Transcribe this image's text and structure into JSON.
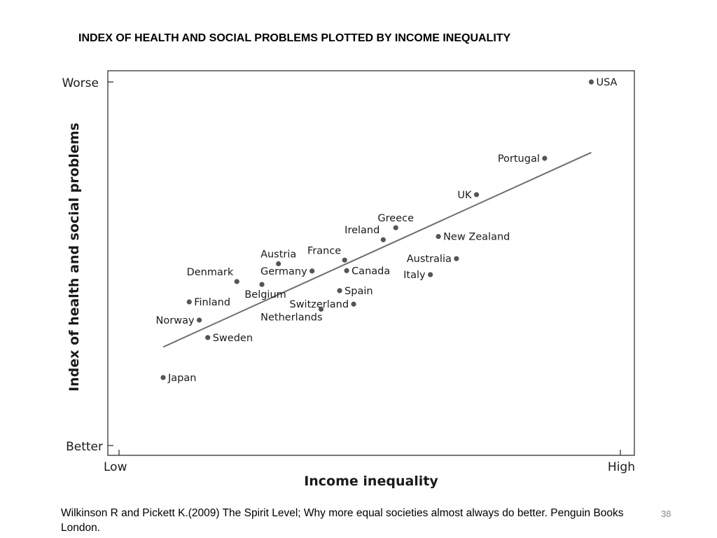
{
  "slide": {
    "title": "INDEX OF HEALTH AND SOCIAL PROBLEMS PLOTTED BY INCOME INEQUALITY",
    "citation": "Wilkinson R and Pickett K.(2009) The Spirit Level; Why more equal societies almost always do better. Penguin Books London.",
    "slide_number": "38"
  },
  "chart_data": {
    "type": "scatter",
    "xlabel": "Income inequality",
    "ylabel": "Index of health and social problems",
    "x_tick_labels": [
      "Low",
      "High"
    ],
    "y_tick_labels": [
      "Better",
      "Worse"
    ],
    "xlim": [
      0,
      100
    ],
    "ylim": [
      0,
      100
    ],
    "grid": false,
    "legend": "none",
    "colors": {
      "points": "#555555",
      "trendline": "#6e6e6e",
      "axes": "#333333"
    },
    "points": [
      {
        "name": "USA",
        "x": 94.2,
        "y": 100.0,
        "label_side": "right"
      },
      {
        "name": "Portugal",
        "x": 84.9,
        "y": 79.0,
        "label_side": "left"
      },
      {
        "name": "UK",
        "x": 71.3,
        "y": 69.0,
        "label_side": "left"
      },
      {
        "name": "Greece",
        "x": 55.2,
        "y": 59.9,
        "label_side": "above"
      },
      {
        "name": "Ireland",
        "x": 52.7,
        "y": 56.6,
        "label_side": "above-left"
      },
      {
        "name": "New Zealand",
        "x": 63.7,
        "y": 57.5,
        "label_side": "right"
      },
      {
        "name": "France",
        "x": 45.0,
        "y": 51.0,
        "label_side": "above-left"
      },
      {
        "name": "Australia",
        "x": 67.3,
        "y": 51.4,
        "label_side": "left"
      },
      {
        "name": "Canada",
        "x": 45.4,
        "y": 48.1,
        "label_side": "right"
      },
      {
        "name": "Italy",
        "x": 62.1,
        "y": 47.0,
        "label_side": "left"
      },
      {
        "name": "Austria",
        "x": 31.8,
        "y": 50.0,
        "label_side": "above"
      },
      {
        "name": "Germany",
        "x": 38.5,
        "y": 48.0,
        "label_side": "left"
      },
      {
        "name": "Denmark",
        "x": 23.5,
        "y": 45.1,
        "label_side": "above-left"
      },
      {
        "name": "Belgium",
        "x": 28.5,
        "y": 44.3,
        "label_side": "below"
      },
      {
        "name": "Spain",
        "x": 44.0,
        "y": 42.6,
        "label_side": "right"
      },
      {
        "name": "Switzerland",
        "x": 46.8,
        "y": 38.9,
        "label_side": "left"
      },
      {
        "name": "Netherlands",
        "x": 40.3,
        "y": 37.5,
        "label_side": "below-left"
      },
      {
        "name": "Finland",
        "x": 14.0,
        "y": 39.5,
        "label_side": "right"
      },
      {
        "name": "Norway",
        "x": 16.0,
        "y": 34.5,
        "label_side": "left"
      },
      {
        "name": "Sweden",
        "x": 17.7,
        "y": 29.7,
        "label_side": "right"
      },
      {
        "name": "Japan",
        "x": 8.8,
        "y": 18.7,
        "label_side": "right"
      }
    ],
    "trendline": {
      "x": [
        8.8,
        94.2
      ],
      "y": [
        27.1,
        80.6
      ]
    }
  }
}
